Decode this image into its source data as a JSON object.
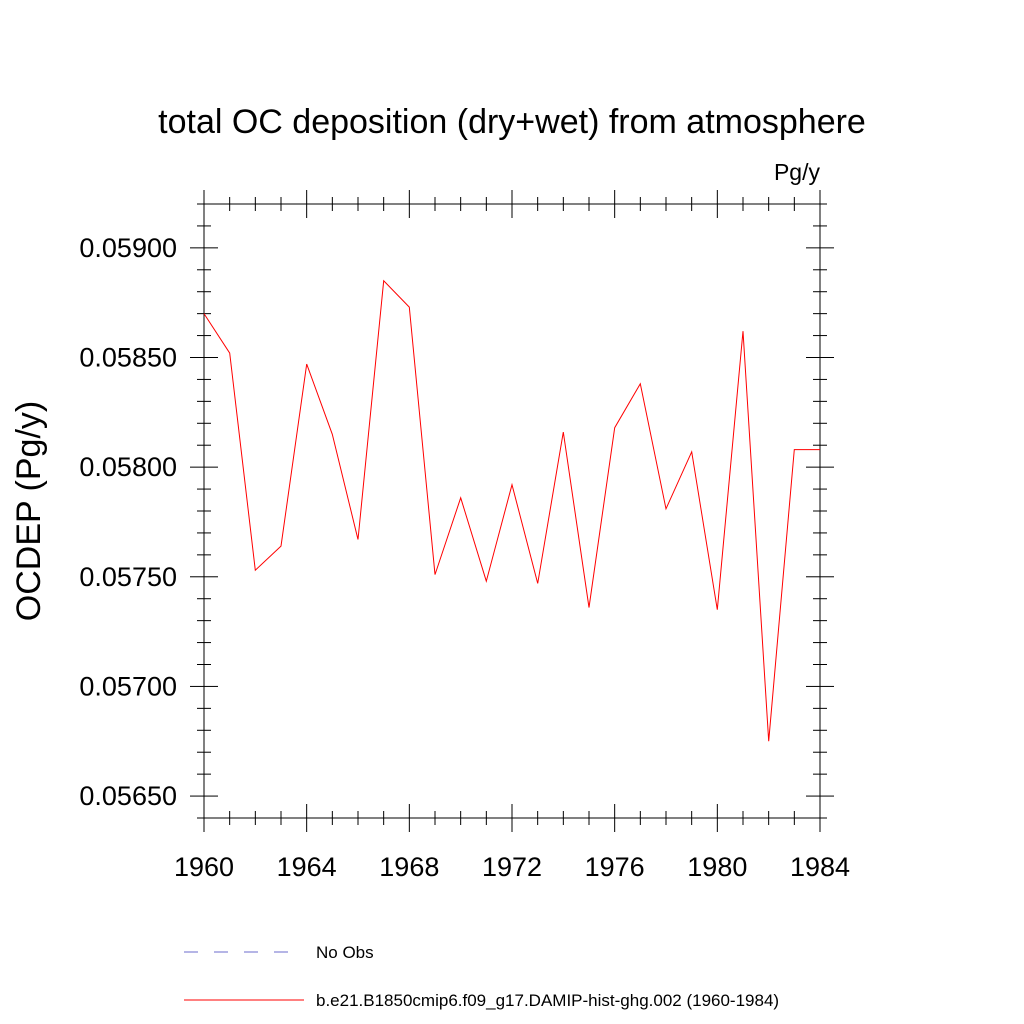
{
  "chart_data": {
    "type": "line",
    "title": "total OC deposition (dry+wet) from atmosphere",
    "units_label": "Pg/y",
    "ylabel": "OCDEP  (Pg/y)",
    "xlabel": "",
    "xlim": [
      1960,
      1984
    ],
    "ylim": [
      0.0564,
      0.0592
    ],
    "x_ticks": [
      1960,
      1964,
      1968,
      1972,
      1976,
      1980,
      1984
    ],
    "x_tick_labels": [
      "1960",
      "1964",
      "1968",
      "1972",
      "1976",
      "1980",
      "1984"
    ],
    "y_ticks": [
      0.0565,
      0.057,
      0.0575,
      0.058,
      0.0585,
      0.059
    ],
    "y_tick_labels": [
      "0.05650",
      "0.05700",
      "0.05750",
      "0.05800",
      "0.05850",
      "0.05900"
    ],
    "grid": false,
    "legend_position": "bottom",
    "series": [
      {
        "name": "b.e21.B1850cmip6.f09_g17.DAMIP-hist-ghg.002 (1960-1984)",
        "color": "#ff0000",
        "style": "solid",
        "x": [
          1960,
          1961,
          1962,
          1963,
          1964,
          1965,
          1966,
          1967,
          1968,
          1969,
          1970,
          1971,
          1972,
          1973,
          1974,
          1975,
          1976,
          1977,
          1978,
          1979,
          1980,
          1981,
          1982,
          1983,
          1984
        ],
        "y": [
          0.0587,
          0.05852,
          0.05753,
          0.05764,
          0.05847,
          0.05815,
          0.05767,
          0.05885,
          0.05873,
          0.05751,
          0.05786,
          0.05748,
          0.05792,
          0.05747,
          0.05816,
          0.05736,
          0.05818,
          0.05838,
          0.05781,
          0.05807,
          0.05735,
          0.05862,
          0.05675,
          0.05808,
          0.05808
        ]
      }
    ],
    "legend": [
      {
        "label": "No Obs",
        "color": "#6b6bcc",
        "style": "dashed"
      },
      {
        "label": "b.e21.B1850cmip6.f09_g17.DAMIP-hist-ghg.002 (1960-1984)",
        "color": "#ff0000",
        "style": "solid"
      }
    ]
  }
}
